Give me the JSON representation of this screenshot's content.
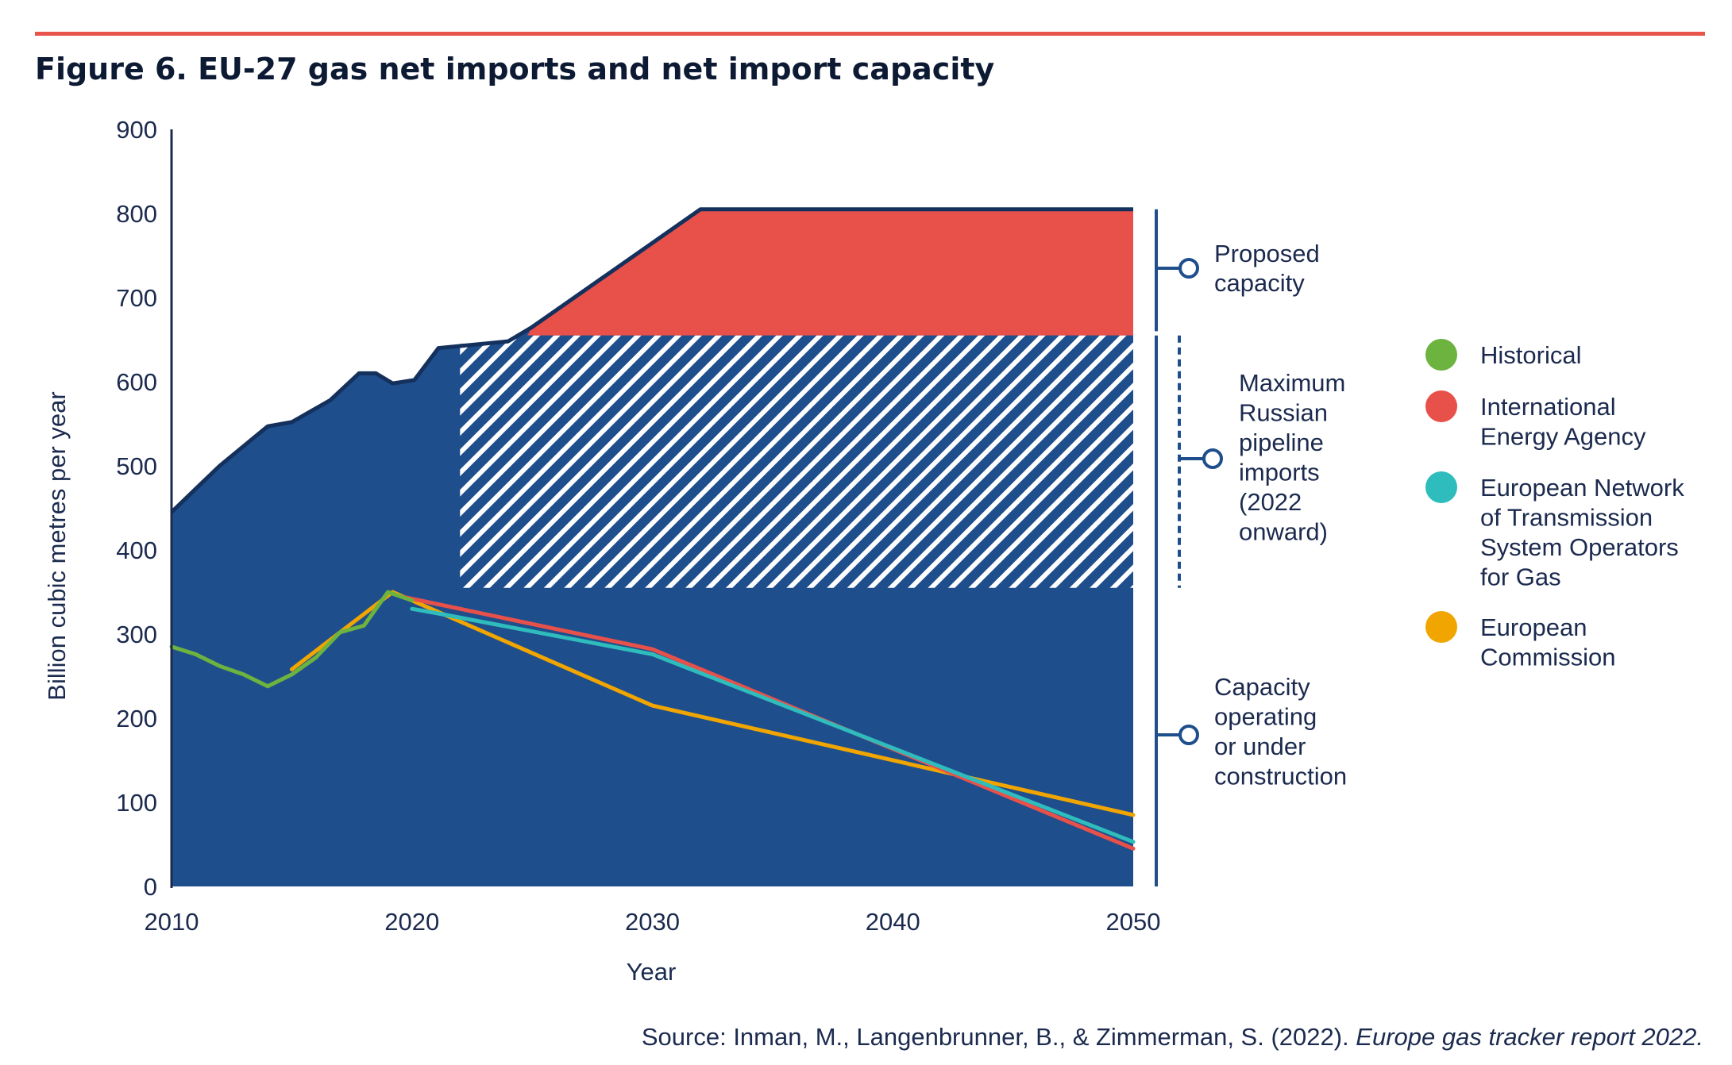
{
  "figure": {
    "title": "Figure 6. EU-27 gas net imports and net import capacity",
    "source_prefix": "Source: Inman, M., Langenbrunner, B., & Zimmerman, S. (2022). ",
    "source_italic": "Europe gas tracker report 2022."
  },
  "colors": {
    "rule": "#e8534a",
    "capacity": "#1f4e8c",
    "capacity_edge": "#14305c",
    "proposed": "#e8514a",
    "historical": "#6cb33f",
    "iea": "#e8514a",
    "entsog": "#2fbcbc",
    "ec": "#f0a500",
    "text": "#1b2a4e"
  },
  "chart_data": {
    "type": "area",
    "title": "Figure 6. EU-27 gas net imports and net import capacity",
    "xlabel": "Year",
    "ylabel": "Billion cubic metres per year",
    "xlim": [
      2010,
      2050
    ],
    "ylim": [
      0,
      900
    ],
    "x_ticks": [
      2010,
      2020,
      2030,
      2040,
      2050
    ],
    "y_ticks": [
      0,
      100,
      200,
      300,
      400,
      500,
      600,
      700,
      800,
      900
    ],
    "grid": false,
    "legend_position": "right",
    "capacity_outline": [
      [
        2010,
        445
      ],
      [
        2012,
        500
      ],
      [
        2014,
        547
      ],
      [
        2015,
        552
      ],
      [
        2016.6,
        578
      ],
      [
        2017.8,
        610
      ],
      [
        2018.5,
        610
      ],
      [
        2019.2,
        598
      ],
      [
        2020.1,
        602
      ],
      [
        2021.1,
        640
      ],
      [
        2024,
        648
      ],
      [
        2025,
        665
      ],
      [
        2027,
        705
      ],
      [
        2032,
        805
      ],
      [
        2050,
        805
      ]
    ],
    "bands": [
      {
        "name": "Capacity operating or under construction",
        "from": 0,
        "to": 655,
        "x_start": 2010,
        "x_end": 2050
      },
      {
        "name": "Proposed capacity",
        "from": 655,
        "to": 805,
        "x_start": 2024.8,
        "x_end": 2050
      },
      {
        "name": "Maximum Russian pipeline imports (2022 onward)",
        "from": 355,
        "to": 655,
        "x_start": 2022,
        "x_end": 2050,
        "pattern": "hatched"
      }
    ],
    "annotations": {
      "proposed": [
        "Proposed",
        "capacity"
      ],
      "russian": [
        "Maximum",
        "Russian",
        "pipeline",
        "imports",
        "(2022",
        "onward)"
      ],
      "operating": [
        "Capacity",
        "operating",
        "or under",
        "construction"
      ]
    },
    "series": [
      {
        "key": "historical",
        "name": "Historical",
        "points": [
          [
            2010,
            285
          ],
          [
            2011,
            276
          ],
          [
            2012,
            262
          ],
          [
            2013,
            252
          ],
          [
            2014,
            238
          ],
          [
            2015,
            252
          ],
          [
            2016,
            272
          ],
          [
            2017,
            302
          ],
          [
            2018,
            310
          ],
          [
            2019,
            350
          ],
          [
            2020,
            340
          ]
        ]
      },
      {
        "key": "iea",
        "name": "International Energy Agency",
        "points": [
          [
            2019.5,
            345
          ],
          [
            2030,
            282
          ],
          [
            2050,
            45
          ]
        ]
      },
      {
        "key": "entsog",
        "name": "European Network of Transmission System Operators for Gas",
        "legend_lines": [
          "European Network",
          "of Transmission",
          "System Operators",
          "for Gas"
        ],
        "points": [
          [
            2020,
            330
          ],
          [
            2021,
            325
          ],
          [
            2030,
            276
          ],
          [
            2050,
            53
          ]
        ]
      },
      {
        "key": "ec",
        "name": "European Commission",
        "legend_lines": [
          "European",
          "Commission"
        ],
        "points": [
          [
            2015,
            258
          ],
          [
            2019.2,
            350
          ],
          [
            2030,
            215
          ],
          [
            2050,
            85
          ]
        ]
      }
    ],
    "legend_lines": {
      "historical": [
        "Historical"
      ],
      "iea": [
        "International",
        "Energy Agency"
      ],
      "entsog": [
        "European Network",
        "of Transmission",
        "System Operators",
        "for Gas"
      ],
      "ec": [
        "European",
        "Commission"
      ]
    }
  }
}
